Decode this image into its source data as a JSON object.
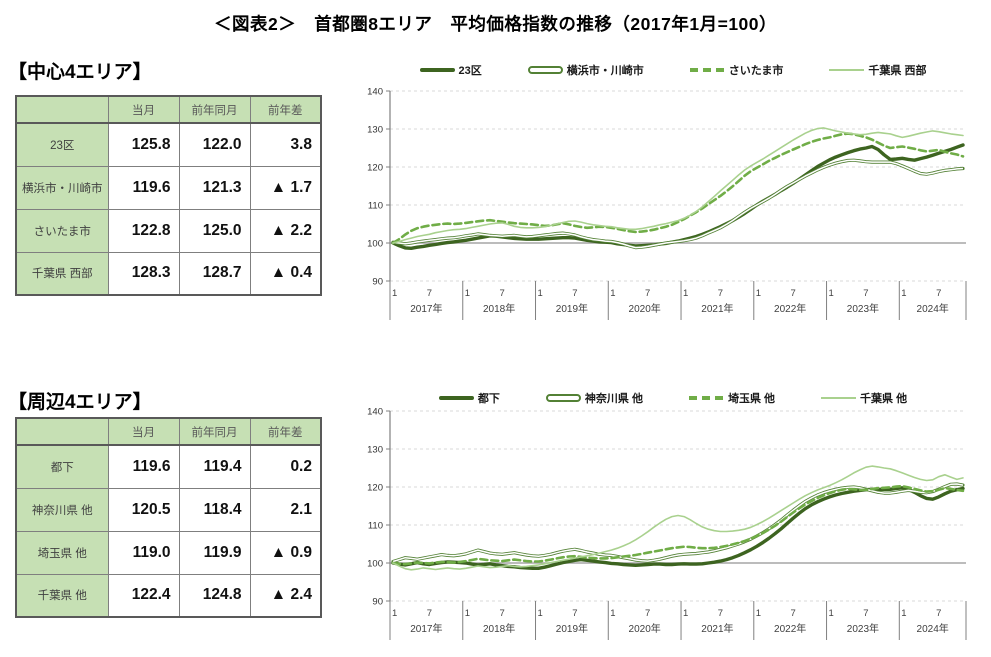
{
  "title": "＜図表2＞　首都圏8エリア　平均価格指数の推移（2017年1月=100）",
  "colors": {
    "dark_green": "#3d6420",
    "medium_dark_green": "#538135",
    "medium_green": "#70ad47",
    "light_green": "#a9d18e",
    "table_fill": "#c6e0b4",
    "gridline": "#d9d9d9",
    "baseline_100": "#a6a6a6",
    "axis": "#808080"
  },
  "sections": [
    {
      "heading": "【中心4エリア】",
      "table": {
        "col_headers": [
          "当月",
          "前年同月",
          "前年差"
        ],
        "rows": [
          {
            "label": "23区",
            "values": [
              "125.8",
              "122.0",
              "3.8"
            ]
          },
          {
            "label": "横浜市・川崎市",
            "values": [
              "119.6",
              "121.3",
              "▲ 1.7"
            ]
          },
          {
            "label": "さいたま市",
            "values": [
              "122.8",
              "125.0",
              "▲ 2.2"
            ]
          },
          {
            "label": "千葉県 西部",
            "values": [
              "128.3",
              "128.7",
              "▲ 0.4"
            ]
          }
        ]
      }
    },
    {
      "heading": "【周辺4エリア】",
      "table": {
        "col_headers": [
          "当月",
          "前年同月",
          "前年差"
        ],
        "rows": [
          {
            "label": "都下",
            "values": [
              "119.6",
              "119.4",
              "0.2"
            ]
          },
          {
            "label": "神奈川県 他",
            "values": [
              "120.5",
              "118.4",
              "2.1"
            ]
          },
          {
            "label": "埼玉県 他",
            "values": [
              "119.0",
              "119.9",
              "▲ 0.9"
            ]
          },
          {
            "label": "千葉県 他",
            "values": [
              "122.4",
              "124.8",
              "▲ 2.4"
            ]
          }
        ]
      }
    }
  ],
  "chart_data": [
    {
      "type": "line",
      "title": "中心4エリア 平均価格指数（2017年1月=100）",
      "x_start": "2017-01",
      "x_end": "2024-11",
      "x_axis": {
        "month_ticks": [
          "1",
          "7"
        ],
        "year_labels": [
          "2017年",
          "2018年",
          "2019年",
          "2020年",
          "2021年",
          "2022年",
          "2023年",
          "2024年"
        ]
      },
      "ylim": [
        90,
        140
      ],
      "y_ticks": [
        90,
        100,
        110,
        120,
        130,
        140
      ],
      "grid": "horizontal dashed every 10, solid line at 100",
      "legend_position": "top",
      "series": [
        {
          "name": "23区",
          "style": "solid-thick",
          "color": "#3d6420",
          "values": [
            100,
            99.3,
            98.7,
            98.6,
            98.9,
            99.1,
            99.4,
            99.6,
            99.9,
            100.1,
            100.3,
            100.5,
            100.7,
            101,
            101.3,
            101.6,
            101.9,
            101.8,
            101.6,
            101.4,
            101.2,
            101.1,
            101,
            101,
            101,
            101.1,
            101.2,
            101.3,
            101.4,
            101.4,
            101.3,
            101,
            100.7,
            100.5,
            100.3,
            100.2,
            100.1,
            99.8,
            99.6,
            99.4,
            99.2,
            99.3,
            99.4,
            99.5,
            99.7,
            99.9,
            100.2,
            100.5,
            100.9,
            101.3,
            101.7,
            102.3,
            102.9,
            103.6,
            104.3,
            105.1,
            105.9,
            106.8,
            107.8,
            108.9,
            110,
            111,
            111.9,
            112.8,
            113.8,
            114.7,
            115.7,
            116.8,
            117.9,
            119,
            120.1,
            121,
            121.9,
            122.6,
            123.2,
            123.8,
            124.3,
            124.7,
            125,
            125.4,
            124.6,
            123.2,
            122,
            122.1,
            122.3,
            122,
            121.8,
            122.2,
            122.6,
            123.1,
            123.6,
            124.1,
            124.6,
            125.2,
            125.8
          ]
        },
        {
          "name": "横浜市・川崎市",
          "style": "double",
          "color": "#538135",
          "values": [
            100.2,
            100,
            99.8,
            100,
            100.3,
            100.5,
            100.7,
            100.9,
            101.1,
            101.3,
            101.4,
            101.6,
            101.9,
            102.1,
            102.4,
            102.2,
            102,
            101.9,
            101.8,
            101.9,
            102,
            101.8,
            101.6,
            101.7,
            101.9,
            102.1,
            102.3,
            102.5,
            102.6,
            102.4,
            102.1,
            101.6,
            101.2,
            100.9,
            100.7,
            100.5,
            100.4,
            100.1,
            99.7,
            99.2,
            98.8,
            98.9,
            99.1,
            99.4,
            99.7,
            100,
            100.2,
            100.4,
            100.6,
            100.9,
            101.3,
            101.9,
            102.6,
            103.3,
            104,
            104.9,
            105.9,
            107,
            108.1,
            109.1,
            110,
            110.9,
            111.8,
            112.8,
            113.9,
            114.9,
            115.8,
            116.7,
            117.6,
            118.4,
            119.2,
            119.9,
            120.5,
            121,
            121.4,
            121.7,
            121.8,
            121.6,
            121.4,
            121.3,
            121.3,
            121.3,
            121.3,
            120.9,
            120.3,
            119.6,
            118.9,
            118.3,
            118.1,
            118.4,
            118.8,
            119.1,
            119.3,
            119.5,
            119.6
          ]
        },
        {
          "name": "さいたま市",
          "style": "dashed",
          "color": "#70ad47",
          "values": [
            100,
            101,
            102.2,
            103.2,
            103.9,
            104.3,
            104.6,
            104.8,
            105,
            105.1,
            105,
            105.1,
            105.3,
            105.5,
            105.7,
            105.9,
            106,
            105.8,
            105.6,
            105.4,
            105.2,
            105.1,
            105,
            104.9,
            104.7,
            104.5,
            104.6,
            104.9,
            105.2,
            104.9,
            104.5,
            104.2,
            104,
            104.1,
            104.3,
            104.2,
            104,
            103.7,
            103.4,
            103.1,
            102.9,
            103,
            103.2,
            103.5,
            103.9,
            104.3,
            104.8,
            105.5,
            106.3,
            107.2,
            108.1,
            109.1,
            110.2,
            111.3,
            112.4,
            113.6,
            114.9,
            116.3,
            117.7,
            118.9,
            119.8,
            120.7,
            121.6,
            122.4,
            123.2,
            123.9,
            124.6,
            125.3,
            126,
            126.6,
            127.1,
            127.5,
            127.8,
            128.2,
            128.6,
            128.8,
            128.6,
            128.2,
            127.8,
            127.2,
            126.4,
            125.6,
            125,
            125.2,
            125.4,
            125.1,
            124.8,
            124.4,
            124.1,
            124.3,
            124.5,
            124,
            123.6,
            123.3,
            122.8
          ]
        },
        {
          "name": "千葉県 西部",
          "style": "solid-thin",
          "color": "#a9d18e",
          "values": [
            100,
            100.4,
            100.9,
            101.3,
            101.7,
            102,
            102.3,
            102.7,
            103,
            103.3,
            103.5,
            103.6,
            103.8,
            104.1,
            104.4,
            104.7,
            105,
            105.2,
            105.3,
            104.9,
            104.4,
            104.1,
            104,
            104,
            104.1,
            104.3,
            104.6,
            105,
            105.4,
            105.7,
            105.8,
            105.5,
            105.1,
            104.8,
            104.6,
            104.4,
            104.3,
            104,
            103.8,
            103.6,
            103.6,
            103.8,
            104.1,
            104.4,
            104.8,
            105.1,
            105.5,
            105.9,
            106.5,
            107.3,
            108.3,
            109.5,
            110.9,
            112.3,
            113.7,
            115.1,
            116.5,
            117.9,
            119.2,
            120.3,
            121.2,
            122.1,
            123.1,
            124.1,
            125.1,
            126.1,
            127.1,
            128,
            128.9,
            129.6,
            130.1,
            130.3,
            129.9,
            129.5,
            129.2,
            128.9,
            128.7,
            128.5,
            128.6,
            128.9,
            129.1,
            128.9,
            128.7,
            128.2,
            127.8,
            128.1,
            128.5,
            128.9,
            129.2,
            129.5,
            129.3,
            129,
            128.7,
            128.5,
            128.3
          ]
        }
      ]
    },
    {
      "type": "line",
      "title": "周辺4エリア 平均価格指数（2017年1月=100）",
      "x_start": "2017-01",
      "x_end": "2024-11",
      "x_axis": {
        "month_ticks": [
          "1",
          "7"
        ],
        "year_labels": [
          "2017年",
          "2018年",
          "2019年",
          "2020年",
          "2021年",
          "2022年",
          "2023年",
          "2024年"
        ]
      },
      "ylim": [
        90,
        140
      ],
      "y_ticks": [
        90,
        100,
        110,
        120,
        130,
        140
      ],
      "grid": "horizontal dashed every 10, solid line at 100",
      "legend_position": "top",
      "series": [
        {
          "name": "都下",
          "style": "solid-thick",
          "color": "#3d6420",
          "values": [
            100,
            99.7,
            99.5,
            99.8,
            100.1,
            99.8,
            99.6,
            99.9,
            100.1,
            100.3,
            100.2,
            100.1,
            100,
            99.7,
            99.5,
            99.6,
            99.8,
            99.5,
            99.3,
            99.1,
            99,
            98.8,
            98.7,
            98.6,
            98.6,
            98.9,
            99.3,
            99.7,
            100.1,
            100.4,
            100.7,
            100.9,
            100.7,
            100.5,
            100.3,
            100.1,
            99.9,
            99.8,
            99.6,
            99.5,
            99.4,
            99.5,
            99.6,
            99.7,
            99.7,
            99.6,
            99.6,
            99.7,
            99.8,
            99.7,
            99.7,
            99.8,
            100,
            100.2,
            100.5,
            100.9,
            101.4,
            102,
            102.7,
            103.5,
            104.4,
            105.4,
            106.5,
            107.7,
            109,
            110.4,
            111.8,
            113.1,
            114.3,
            115.3,
            116.1,
            116.8,
            117.4,
            117.9,
            118.3,
            118.6,
            118.9,
            119.1,
            119.3,
            119.4,
            119.4,
            119.4,
            119.4,
            119.6,
            119.8,
            119.4,
            118.6,
            117.7,
            117,
            116.8,
            117.4,
            118.2,
            118.9,
            119.3,
            119.6
          ]
        },
        {
          "name": "神奈川県 他",
          "style": "double",
          "color": "#538135",
          "values": [
            100.4,
            100.9,
            101.4,
            101.2,
            101,
            101.3,
            101.6,
            101.9,
            102.2,
            102,
            101.9,
            102.1,
            102.4,
            102.9,
            103.4,
            103,
            102.6,
            102.4,
            102.3,
            102.5,
            102.7,
            102.4,
            102.1,
            101.9,
            101.8,
            102,
            102.3,
            102.7,
            103.1,
            103.4,
            103.6,
            103.3,
            102.9,
            102.6,
            102.3,
            102.1,
            102,
            101.7,
            101.4,
            101.1,
            100.8,
            100.6,
            100.5,
            100.7,
            101,
            101.4,
            101.8,
            102.1,
            102.3,
            102.4,
            102.5,
            102.7,
            102.9,
            103.2,
            103.6,
            104,
            104.5,
            105,
            105.6,
            106.3,
            107.1,
            108,
            109,
            110.1,
            111.3,
            112.6,
            113.9,
            115.1,
            116.2,
            117.1,
            117.9,
            118.5,
            119,
            119.4,
            119.7,
            119.9,
            120,
            119.8,
            119.4,
            119,
            118.6,
            118.4,
            118.4,
            118.6,
            118.9,
            119.1,
            118.9,
            118.6,
            118.5,
            118.8,
            119.4,
            120.1,
            120.7,
            120.8,
            120.5
          ]
        },
        {
          "name": "埼玉県 他",
          "style": "dashed",
          "color": "#70ad47",
          "values": [
            100,
            99.8,
            99.7,
            99.9,
            100.1,
            100,
            99.9,
            100.1,
            100.3,
            100.2,
            100.1,
            100.3,
            100.5,
            100.8,
            101.1,
            100.9,
            100.7,
            100.6,
            100.5,
            100.7,
            100.9,
            100.7,
            100.5,
            100.4,
            100.4,
            100.6,
            100.9,
            101.2,
            101.5,
            101.7,
            101.8,
            101.6,
            101.4,
            101.3,
            101.2,
            101.2,
            101.3,
            101.5,
            101.7,
            101.9,
            102.1,
            102.4,
            102.7,
            103,
            103.3,
            103.6,
            103.9,
            104.1,
            104.3,
            104.2,
            104,
            103.9,
            103.9,
            104,
            104.2,
            104.5,
            104.9,
            105.3,
            105.8,
            106.4,
            107.1,
            107.9,
            108.8,
            109.8,
            110.9,
            112.1,
            113.3,
            114.4,
            115.4,
            116.3,
            117.1,
            117.8,
            118.4,
            118.9,
            119.3,
            119.5,
            119.4,
            119.2,
            119.3,
            119.5,
            119.7,
            119.8,
            119.9,
            120.1,
            120.2,
            119.9,
            119.5,
            119.1,
            118.8,
            118.9,
            119.3,
            119.7,
            119.5,
            119.2,
            119
          ]
        },
        {
          "name": "千葉県 他",
          "style": "solid-thin",
          "color": "#a9d18e",
          "values": [
            100,
            99.2,
            98.5,
            98.2,
            98.4,
            98.7,
            98.5,
            98.3,
            98.5,
            98.7,
            98.5,
            98.4,
            98.6,
            98.9,
            99.2,
            99,
            98.8,
            98.9,
            99.1,
            99.3,
            99.1,
            99,
            99.1,
            99.3,
            99.5,
            99.8,
            100.1,
            100.4,
            100.7,
            101,
            101.3,
            101.6,
            101.9,
            102.2,
            102.6,
            103,
            103.4,
            103.9,
            104.5,
            105.2,
            106.1,
            107.1,
            108.2,
            109.4,
            110.5,
            111.5,
            112.2,
            112.5,
            112.2,
            111.4,
            110.4,
            109.5,
            108.9,
            108.5,
            108.3,
            108.3,
            108.4,
            108.6,
            108.9,
            109.4,
            110.1,
            110.9,
            111.8,
            112.8,
            113.8,
            114.8,
            115.8,
            116.8,
            117.7,
            118.5,
            119.2,
            119.8,
            120.4,
            121.1,
            121.9,
            122.8,
            123.7,
            124.5,
            125.2,
            125.5,
            125.3,
            125,
            124.8,
            124.3,
            123.7,
            123.1,
            122.5,
            122,
            121.7,
            121.9,
            122.7,
            123.2,
            122.6,
            122,
            122.4
          ]
        }
      ]
    }
  ]
}
